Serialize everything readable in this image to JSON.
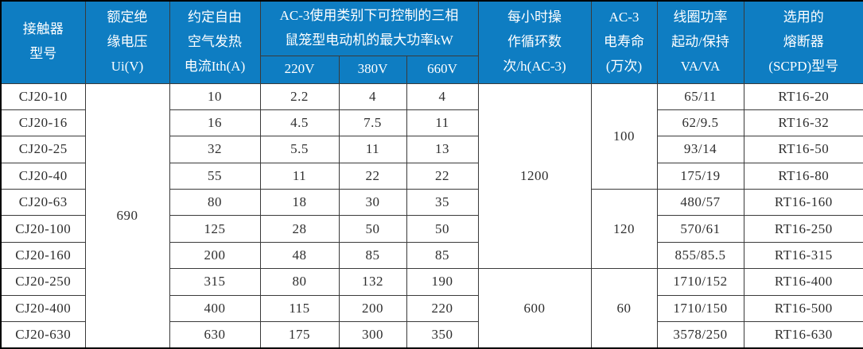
{
  "colors": {
    "header_bg": "#0e7dc2",
    "header_text": "#ffffff",
    "grid_line": "#3a3a3a",
    "body_text": "#2e2e2e"
  },
  "table": {
    "header": {
      "model": "接触器\n型号",
      "rated_voltage": "额定绝\n缘电压\nUi(V)",
      "thermal_current": "约定自由\n空气发热\n电流Ith(A)",
      "power_group": "AC-3使用类别下可控制的三相\n鼠笼型电动机的最大功率kW",
      "sub_220": "220V",
      "sub_380": "380V",
      "sub_660": "660V",
      "cycles": "每小时操\n作循环数\n次/h(AC-3)",
      "life": "AC-3\n电寿命\n(万次)",
      "coil_power": "线圈功率\n起动/保持\nVA/VA",
      "fuse": "选用的\n熔断器\n(SCPD)型号"
    },
    "rows": [
      {
        "model": "CJ20-10",
        "ith": "10",
        "p220": "2.2",
        "p380": "4",
        "p660": "4",
        "coil": "65/11",
        "fuse": "RT16-20"
      },
      {
        "model": "CJ20-16",
        "ith": "16",
        "p220": "4.5",
        "p380": "7.5",
        "p660": "11",
        "coil": "62/9.5",
        "fuse": "RT16-32"
      },
      {
        "model": "CJ20-25",
        "ith": "32",
        "p220": "5.5",
        "p380": "11",
        "p660": "13",
        "coil": "93/14",
        "fuse": "RT16-50"
      },
      {
        "model": "CJ20-40",
        "ith": "55",
        "p220": "11",
        "p380": "22",
        "p660": "22",
        "coil": "175/19",
        "fuse": "RT16-80"
      },
      {
        "model": "CJ20-63",
        "ith": "80",
        "p220": "18",
        "p380": "30",
        "p660": "35",
        "coil": "480/57",
        "fuse": "RT16-160"
      },
      {
        "model": "CJ20-100",
        "ith": "125",
        "p220": "28",
        "p380": "50",
        "p660": "50",
        "coil": "570/61",
        "fuse": "RT16-250"
      },
      {
        "model": "CJ20-160",
        "ith": "200",
        "p220": "48",
        "p380": "85",
        "p660": "85",
        "coil": "855/85.5",
        "fuse": "RT16-315"
      },
      {
        "model": "CJ20-250",
        "ith": "315",
        "p220": "80",
        "p380": "132",
        "p660": "190",
        "coil": "1710/152",
        "fuse": "RT16-400"
      },
      {
        "model": "CJ20-400",
        "ith": "400",
        "p220": "115",
        "p380": "200",
        "p660": "220",
        "coil": "1710/150",
        "fuse": "RT16-500"
      },
      {
        "model": "CJ20-630",
        "ith": "630",
        "p220": "175",
        "p380": "300",
        "p660": "350",
        "coil": "3578/250",
        "fuse": "RT16-630"
      }
    ],
    "merged": {
      "rated_voltage": [
        {
          "value": "690",
          "start": 0,
          "span": 10
        }
      ],
      "cycles": [
        {
          "value": "1200",
          "start": 0,
          "span": 7
        },
        {
          "value": "600",
          "start": 7,
          "span": 3
        }
      ],
      "life": [
        {
          "value": "100",
          "start": 0,
          "span": 4
        },
        {
          "value": "120",
          "start": 4,
          "span": 3
        },
        {
          "value": "60",
          "start": 7,
          "span": 3
        }
      ]
    }
  }
}
